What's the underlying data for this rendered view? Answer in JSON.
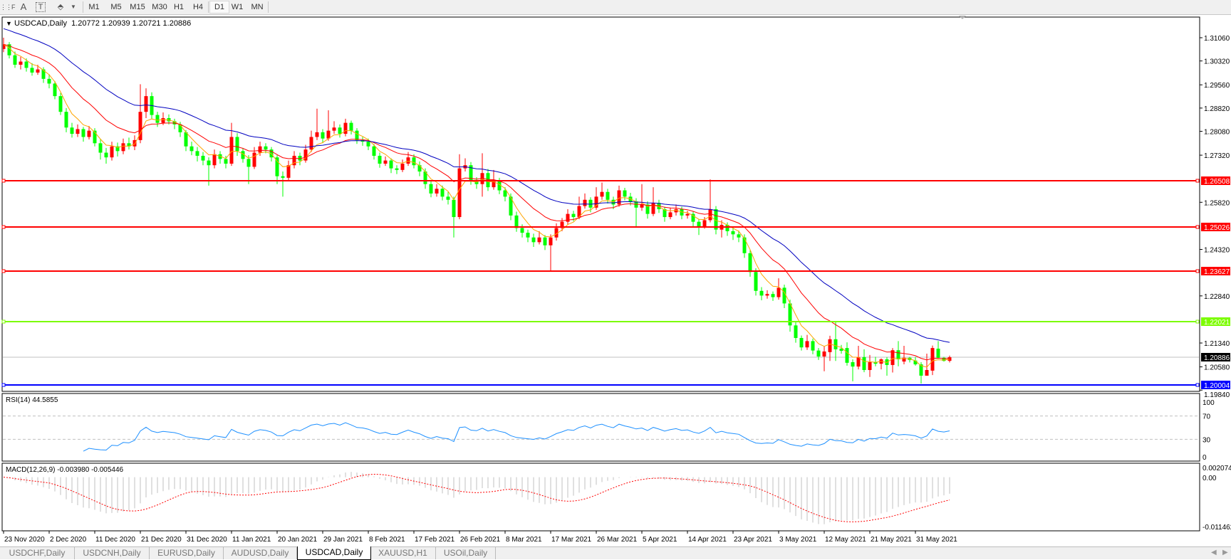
{
  "toolbar": {
    "icons": [
      "grid-icon",
      "text-icon",
      "text-label-icon",
      "arrows-icon"
    ],
    "timeframes": [
      "M1",
      "M5",
      "M15",
      "M30",
      "H1",
      "H4",
      "D1",
      "W1",
      "MN"
    ],
    "active_timeframe": "D1"
  },
  "chart": {
    "header": "USDCAD,Daily  1.20772 1.20939 1.20721 1.20886",
    "price_ticks": [
      "1.31060",
      "1.30320",
      "1.29560",
      "1.28820",
      "1.28080",
      "1.27320",
      "1.25820",
      "1.24320",
      "1.22840",
      "1.21340",
      "1.20580",
      "1.19840"
    ],
    "horizontal_lines": [
      {
        "price": "1.26508",
        "color": "#ff0000"
      },
      {
        "price": "1.25026",
        "color": "#ff0000"
      },
      {
        "price": "1.23627",
        "color": "#ff0000"
      },
      {
        "price": "1.22021",
        "color": "#7cfc00"
      },
      {
        "price": "1.20004",
        "color": "#0000ff"
      }
    ],
    "current_price": "1.20886",
    "colors": {
      "bull": "#ff0000",
      "bear": "#00ff00",
      "ma_fast": "#ffa500",
      "ma_mid": "#ff0000",
      "ma_slow": "#0000c0",
      "rsi": "#1e90ff",
      "macd_hist": "#c0c0c0",
      "macd_signal": "#ff0000"
    }
  },
  "rsi": {
    "label": "RSI(14) 44.5855",
    "ticks": [
      "100",
      "70",
      "30",
      "0"
    ],
    "levels": [
      70,
      30
    ]
  },
  "macd": {
    "label": "MACD(12,26,9) -0.003980 -0.005446",
    "ticks": [
      "0.002074",
      "0.00",
      "-0.011462"
    ]
  },
  "date_axis": [
    "23 Nov 2020",
    "2 Dec 2020",
    "11 Dec 2020",
    "21 Dec 2020",
    "31 Dec 2020",
    "11 Jan 2021",
    "20 Jan 2021",
    "29 Jan 2021",
    "8 Feb 2021",
    "17 Feb 2021",
    "26 Feb 2021",
    "8 Mar 2021",
    "17 Mar 2021",
    "26 Mar 2021",
    "5 Apr 2021",
    "14 Apr 2021",
    "23 Apr 2021",
    "3 May 2021",
    "12 May 2021",
    "21 May 2021",
    "31 May 2021"
  ],
  "tabs": [
    {
      "label": "USDCHF,Daily"
    },
    {
      "label": "USDCNH,Daily"
    },
    {
      "label": "EURUSD,Daily"
    },
    {
      "label": "AUDUSD,Daily"
    },
    {
      "label": "USDCAD,Daily",
      "active": true
    },
    {
      "label": "XAUUSD,H1"
    },
    {
      "label": "USOil,Daily"
    }
  ],
  "chart_data": {
    "type": "candlestick",
    "symbol": "USDCAD,Daily",
    "format": "[open, high, low, close]",
    "candles": [
      [
        1.307,
        1.3106,
        1.306,
        1.3085
      ],
      [
        1.3085,
        1.3092,
        1.304,
        1.305
      ],
      [
        1.305,
        1.3062,
        1.301,
        1.302
      ],
      [
        1.302,
        1.3045,
        1.3005,
        1.303
      ],
      [
        1.303,
        1.304,
        1.2998,
        1.301
      ],
      [
        1.301,
        1.3025,
        1.2985,
        1.2995
      ],
      [
        1.2995,
        1.302,
        1.2988,
        1.3005
      ],
      [
        1.3005,
        1.3012,
        1.2962,
        1.2975
      ],
      [
        1.2975,
        1.299,
        1.2945,
        1.296
      ],
      [
        1.296,
        1.2968,
        1.291,
        1.292
      ],
      [
        1.292,
        1.293,
        1.286,
        1.287
      ],
      [
        1.287,
        1.2882,
        1.2805,
        1.282
      ],
      [
        1.282,
        1.2835,
        1.2788,
        1.28
      ],
      [
        1.28,
        1.283,
        1.279,
        1.2815
      ],
      [
        1.2815,
        1.2822,
        1.2775,
        1.279
      ],
      [
        1.279,
        1.2825,
        1.2782,
        1.281
      ],
      [
        1.281,
        1.2818,
        1.276,
        1.277
      ],
      [
        1.277,
        1.2782,
        1.2718,
        1.274
      ],
      [
        1.274,
        1.2755,
        1.2705,
        1.2725
      ],
      [
        1.2725,
        1.2775,
        1.2715,
        1.276
      ],
      [
        1.276,
        1.2772,
        1.2728,
        1.2745
      ],
      [
        1.2745,
        1.2785,
        1.2735,
        1.277
      ],
      [
        1.277,
        1.2788,
        1.275,
        1.276
      ],
      [
        1.276,
        1.2795,
        1.2748,
        1.278
      ],
      [
        1.278,
        1.2958,
        1.277,
        1.287
      ],
      [
        1.287,
        1.2945,
        1.285,
        1.292
      ],
      [
        1.292,
        1.2932,
        1.2848,
        1.286
      ],
      [
        1.286,
        1.287,
        1.2822,
        1.2835
      ],
      [
        1.2835,
        1.2868,
        1.2828,
        1.285
      ],
      [
        1.285,
        1.2862,
        1.283,
        1.284
      ],
      [
        1.284,
        1.2848,
        1.2815,
        1.283
      ],
      [
        1.283,
        1.2838,
        1.279,
        1.2805
      ],
      [
        1.2805,
        1.2812,
        1.2745,
        1.276
      ],
      [
        1.276,
        1.2775,
        1.2732,
        1.2745
      ],
      [
        1.2745,
        1.2758,
        1.2712,
        1.273
      ],
      [
        1.273,
        1.2742,
        1.27,
        1.2715
      ],
      [
        1.2715,
        1.2725,
        1.2635,
        1.27
      ],
      [
        1.27,
        1.275,
        1.269,
        1.2735
      ],
      [
        1.2735,
        1.2745,
        1.2705,
        1.272
      ],
      [
        1.272,
        1.273,
        1.269,
        1.2705
      ],
      [
        1.2705,
        1.2835,
        1.2698,
        1.279
      ],
      [
        1.279,
        1.2802,
        1.273,
        1.2745
      ],
      [
        1.2745,
        1.2755,
        1.2708,
        1.272
      ],
      [
        1.272,
        1.2732,
        1.264,
        1.2695
      ],
      [
        1.2695,
        1.2758,
        1.2688,
        1.274
      ],
      [
        1.274,
        1.2775,
        1.273,
        1.276
      ],
      [
        1.276,
        1.277,
        1.2738,
        1.275
      ],
      [
        1.275,
        1.2758,
        1.2712,
        1.2725
      ],
      [
        1.2725,
        1.2732,
        1.264,
        1.2665
      ],
      [
        1.2665,
        1.268,
        1.26,
        1.266
      ],
      [
        1.266,
        1.2715,
        1.2652,
        1.27
      ],
      [
        1.27,
        1.2745,
        1.269,
        1.273
      ],
      [
        1.273,
        1.274,
        1.27,
        1.2715
      ],
      [
        1.2715,
        1.2765,
        1.2708,
        1.275
      ],
      [
        1.275,
        1.281,
        1.2742,
        1.279
      ],
      [
        1.279,
        1.288,
        1.278,
        1.2805
      ],
      [
        1.2805,
        1.2815,
        1.277,
        1.2785
      ],
      [
        1.2785,
        1.2875,
        1.2778,
        1.281
      ],
      [
        1.281,
        1.284,
        1.28,
        1.282
      ],
      [
        1.282,
        1.283,
        1.2788,
        1.28
      ],
      [
        1.28,
        1.2848,
        1.2792,
        1.2835
      ],
      [
        1.2835,
        1.2842,
        1.2798,
        1.281
      ],
      [
        1.281,
        1.2818,
        1.2768,
        1.278
      ],
      [
        1.278,
        1.279,
        1.2762,
        1.2775
      ],
      [
        1.2775,
        1.2785,
        1.2748,
        1.276
      ],
      [
        1.276,
        1.2768,
        1.2718,
        1.273
      ],
      [
        1.273,
        1.274,
        1.2692,
        1.2705
      ],
      [
        1.2705,
        1.2728,
        1.2698,
        1.2715
      ],
      [
        1.2715,
        1.2722,
        1.2675,
        1.269
      ],
      [
        1.269,
        1.27,
        1.2672,
        1.2685
      ],
      [
        1.2685,
        1.2718,
        1.2678,
        1.2705
      ],
      [
        1.2705,
        1.2742,
        1.2698,
        1.2725
      ],
      [
        1.2725,
        1.2735,
        1.269,
        1.27
      ],
      [
        1.27,
        1.2712,
        1.2665,
        1.268
      ],
      [
        1.268,
        1.269,
        1.2625,
        1.264
      ],
      [
        1.264,
        1.2652,
        1.2598,
        1.261
      ],
      [
        1.261,
        1.264,
        1.26,
        1.2625
      ],
      [
        1.2625,
        1.2635,
        1.2588,
        1.26
      ],
      [
        1.26,
        1.2615,
        1.2575,
        1.259
      ],
      [
        1.259,
        1.26,
        1.247,
        1.2535
      ],
      [
        1.2535,
        1.2735,
        1.2528,
        1.269
      ],
      [
        1.269,
        1.2722,
        1.268,
        1.27
      ],
      [
        1.27,
        1.271,
        1.2638,
        1.265
      ],
      [
        1.265,
        1.2662,
        1.2625,
        1.264
      ],
      [
        1.264,
        1.2738,
        1.26,
        1.2675
      ],
      [
        1.2675,
        1.2688,
        1.2618,
        1.263
      ],
      [
        1.263,
        1.2685,
        1.2622,
        1.265
      ],
      [
        1.265,
        1.266,
        1.2608,
        1.262
      ],
      [
        1.262,
        1.263,
        1.2585,
        1.26
      ],
      [
        1.26,
        1.261,
        1.2525,
        1.254
      ],
      [
        1.254,
        1.2552,
        1.2488,
        1.25
      ],
      [
        1.25,
        1.2512,
        1.247,
        1.2485
      ],
      [
        1.2485,
        1.2495,
        1.2455,
        1.247
      ],
      [
        1.247,
        1.2482,
        1.244,
        1.2455
      ],
      [
        1.2455,
        1.249,
        1.2448,
        1.247
      ],
      [
        1.247,
        1.2478,
        1.243,
        1.2445
      ],
      [
        1.2445,
        1.248,
        1.2365,
        1.247
      ],
      [
        1.247,
        1.2515,
        1.246,
        1.25
      ],
      [
        1.25,
        1.2532,
        1.249,
        1.252
      ],
      [
        1.252,
        1.256,
        1.251,
        1.2545
      ],
      [
        1.2545,
        1.2555,
        1.2522,
        1.2535
      ],
      [
        1.2535,
        1.26,
        1.2528,
        1.257
      ],
      [
        1.257,
        1.261,
        1.2562,
        1.259
      ],
      [
        1.259,
        1.2598,
        1.255,
        1.2565
      ],
      [
        1.2565,
        1.263,
        1.2558,
        1.26
      ],
      [
        1.26,
        1.2645,
        1.259,
        1.2615
      ],
      [
        1.2615,
        1.2625,
        1.2578,
        1.259
      ],
      [
        1.259,
        1.26,
        1.256,
        1.2575
      ],
      [
        1.2575,
        1.2635,
        1.2568,
        1.262
      ],
      [
        1.262,
        1.2628,
        1.2588,
        1.26
      ],
      [
        1.26,
        1.2612,
        1.2572,
        1.2585
      ],
      [
        1.2585,
        1.2595,
        1.2505,
        1.2565
      ],
      [
        1.2565,
        1.264,
        1.2555,
        1.2575
      ],
      [
        1.2575,
        1.2585,
        1.253,
        1.2545
      ],
      [
        1.2545,
        1.263,
        1.2538,
        1.258
      ],
      [
        1.258,
        1.259,
        1.2548,
        1.256
      ],
      [
        1.256,
        1.2568,
        1.252,
        1.2535
      ],
      [
        1.2535,
        1.2565,
        1.2528,
        1.255
      ],
      [
        1.255,
        1.2575,
        1.254,
        1.256
      ],
      [
        1.256,
        1.2568,
        1.2528,
        1.254
      ],
      [
        1.254,
        1.2555,
        1.253,
        1.2545
      ],
      [
        1.2545,
        1.2552,
        1.2505,
        1.252
      ],
      [
        1.252,
        1.2528,
        1.2478,
        1.2505
      ],
      [
        1.2505,
        1.2535,
        1.2498,
        1.2525
      ],
      [
        1.2525,
        1.2655,
        1.2518,
        1.256
      ],
      [
        1.256,
        1.257,
        1.248,
        1.2495
      ],
      [
        1.2495,
        1.2525,
        1.247,
        1.251
      ],
      [
        1.251,
        1.2518,
        1.2475,
        1.249
      ],
      [
        1.249,
        1.2505,
        1.2462,
        1.248
      ],
      [
        1.248,
        1.2492,
        1.2455,
        1.247
      ],
      [
        1.247,
        1.248,
        1.2405,
        1.242
      ],
      [
        1.242,
        1.243,
        1.2345,
        1.236
      ],
      [
        1.236,
        1.2372,
        1.2285,
        1.23
      ],
      [
        1.23,
        1.2312,
        1.227,
        1.2285
      ],
      [
        1.2285,
        1.2302,
        1.2275,
        1.229
      ],
      [
        1.229,
        1.2298,
        1.2268,
        1.228
      ],
      [
        1.228,
        1.234,
        1.2272,
        1.231
      ],
      [
        1.231,
        1.232,
        1.2245,
        1.226
      ],
      [
        1.226,
        1.2272,
        1.217,
        1.219
      ],
      [
        1.219,
        1.22,
        1.2135,
        1.215
      ],
      [
        1.215,
        1.2158,
        1.211,
        1.212
      ],
      [
        1.212,
        1.216,
        1.2112,
        1.214
      ],
      [
        1.214,
        1.2148,
        1.2098,
        1.211
      ],
      [
        1.211,
        1.2118,
        1.208,
        1.2091
      ],
      [
        1.2091,
        1.2123,
        1.2044,
        1.2107
      ],
      [
        1.2105,
        1.2157,
        1.2077,
        1.2146
      ],
      [
        1.2146,
        1.22,
        1.2077,
        1.2114
      ],
      [
        1.2116,
        1.2128,
        1.21,
        1.2109
      ],
      [
        1.2118,
        1.2136,
        1.2062,
        1.2071
      ],
      [
        1.2073,
        1.2082,
        1.2012,
        1.2059
      ],
      [
        1.2059,
        1.2125,
        1.205,
        1.2089
      ],
      [
        1.2089,
        1.2114,
        1.2041,
        1.2048
      ],
      [
        1.2048,
        1.2096,
        1.2026,
        1.2073
      ],
      [
        1.2073,
        1.209,
        1.206,
        1.2068
      ],
      [
        1.2068,
        1.2085,
        1.205,
        1.2082
      ],
      [
        1.2082,
        1.2089,
        1.203,
        1.2064
      ],
      [
        1.2064,
        1.2118,
        1.204,
        1.2111
      ],
      [
        1.2111,
        1.214,
        1.206,
        1.2082
      ],
      [
        1.2075,
        1.2125,
        1.2066,
        1.2087
      ],
      [
        1.2087,
        1.209,
        1.2072,
        1.208
      ],
      [
        1.2078,
        1.209,
        1.2062,
        1.2066
      ],
      [
        1.2066,
        1.2073,
        1.2005,
        1.203
      ],
      [
        1.203,
        1.21,
        1.203,
        1.2048
      ],
      [
        1.2046,
        1.2126,
        1.2032,
        1.2118
      ],
      [
        1.2116,
        1.214,
        1.2085,
        1.2087
      ],
      [
        1.2087,
        1.209,
        1.2075,
        1.2077
      ],
      [
        1.20772,
        1.20939,
        1.20721,
        1.20886
      ]
    ]
  }
}
